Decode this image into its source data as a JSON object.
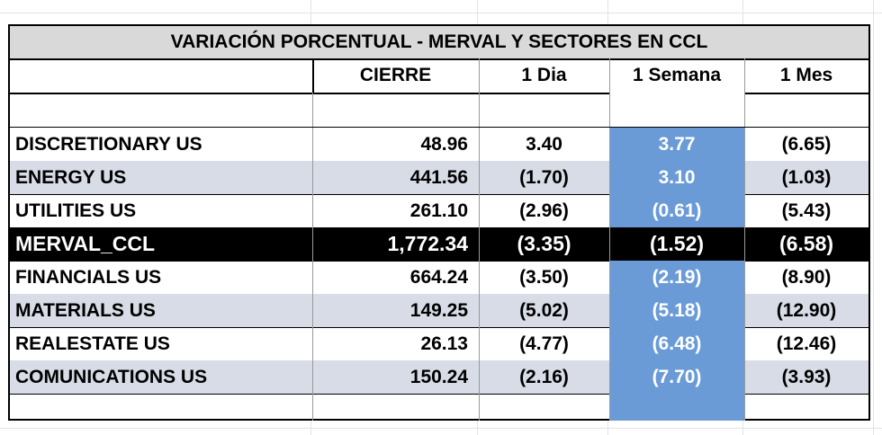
{
  "table": {
    "title": "VARIACIÓN PORCENTUAL  - MERVAL Y SECTORES EN CCL",
    "columns": [
      "CIERRE",
      "1 Dia",
      "1 Semana",
      "1 Mes"
    ],
    "rows": [
      {
        "name": "DISCRETIONARY US",
        "cierre": "48.96",
        "dia": "3.40",
        "semana": "3.77",
        "mes": "(6.65)"
      },
      {
        "name": "ENERGY US",
        "cierre": "441.56",
        "dia": "(1.70)",
        "semana": "3.10",
        "mes": "(1.03)"
      },
      {
        "name": "UTILITIES US",
        "cierre": "261.10",
        "dia": "(2.96)",
        "semana": "(0.61)",
        "mes": "(5.43)"
      },
      {
        "name": "MERVAL_CCL",
        "cierre": "1,772.34",
        "dia": "(3.35)",
        "semana": "(1.52)",
        "mes": "(6.58)"
      },
      {
        "name": "FINANCIALS US",
        "cierre": "664.24",
        "dia": "(3.50)",
        "semana": "(2.19)",
        "mes": "(8.90)"
      },
      {
        "name": "MATERIALS US",
        "cierre": "149.25",
        "dia": "(5.02)",
        "semana": "(5.18)",
        "mes": "(12.90)"
      },
      {
        "name": "REALESTATE US",
        "cierre": "26.13",
        "dia": "(4.77)",
        "semana": "(6.48)",
        "mes": "(12.46)"
      },
      {
        "name": "COMUNICATIONS US",
        "cierre": "150.24",
        "dia": "(2.16)",
        "semana": "(7.70)",
        "mes": "(3.93)"
      }
    ]
  },
  "colors": {
    "title_bg": "#d9d9d9",
    "stripe_bg": "#d7dce6",
    "highlight_bg": "#000000",
    "week_col_bg": "#6a9bd6"
  }
}
